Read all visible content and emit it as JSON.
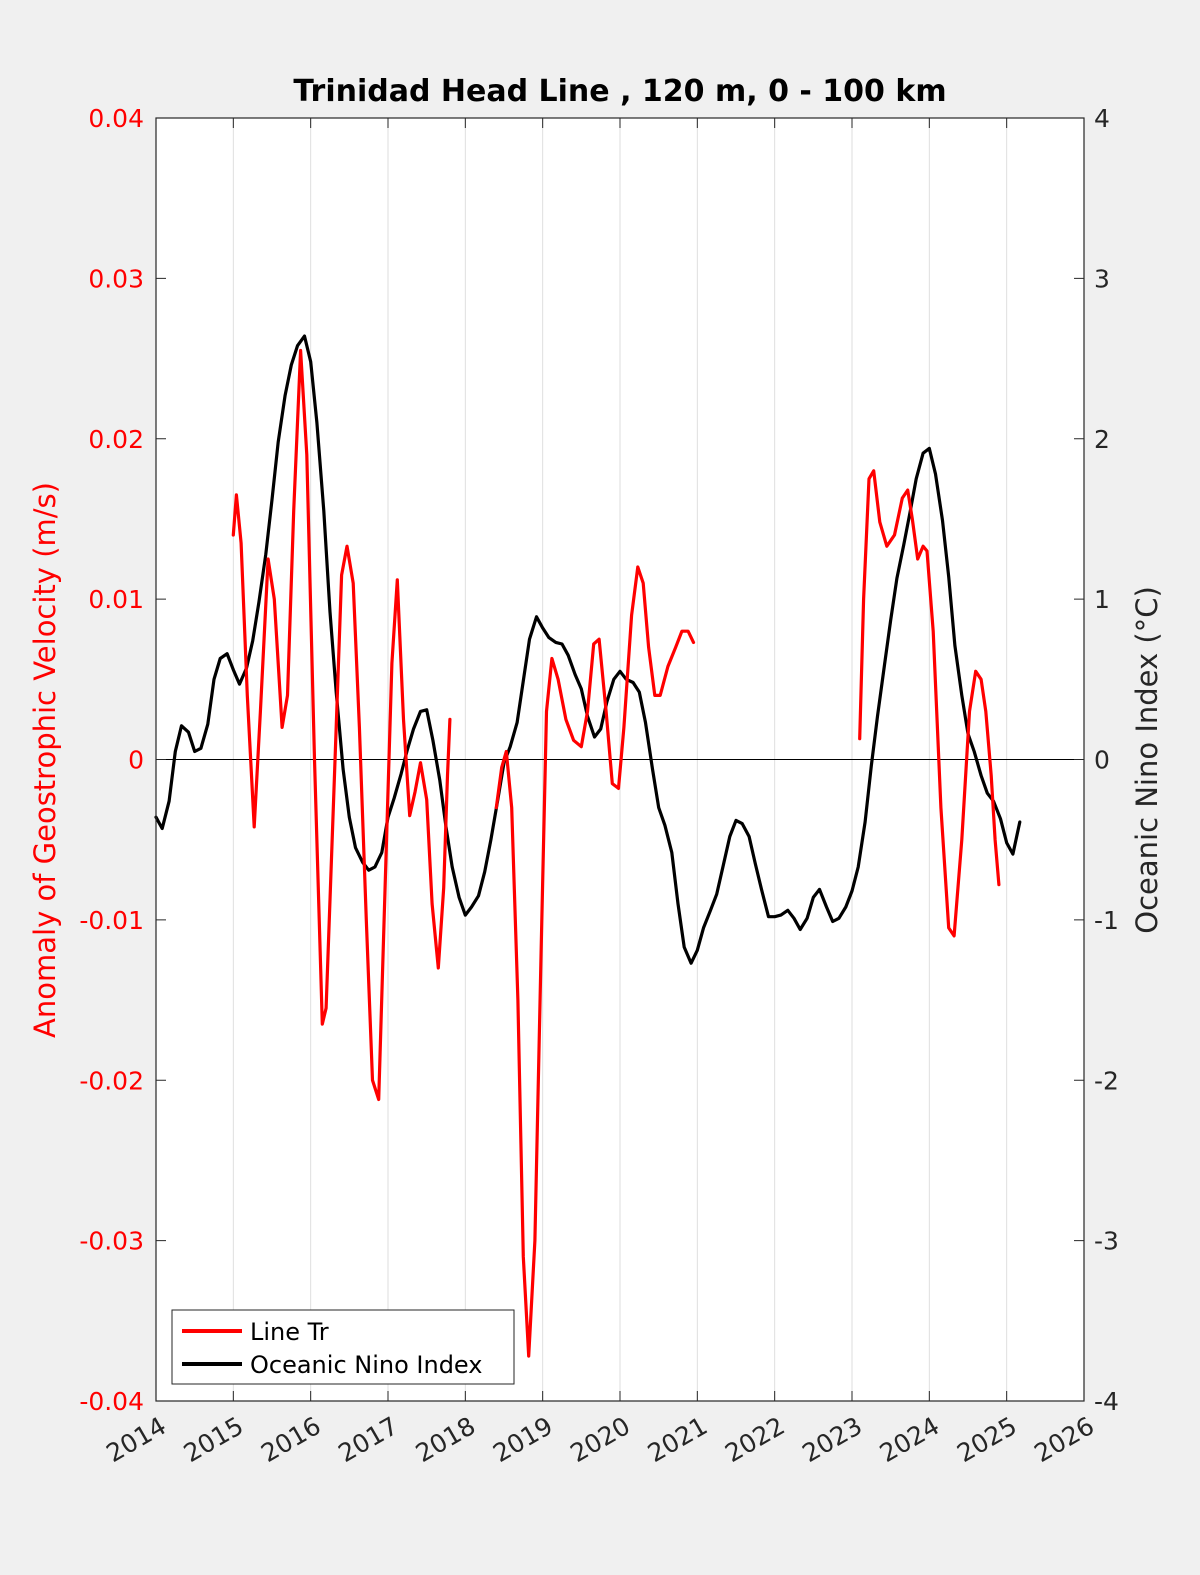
{
  "chart_data": {
    "type": "line",
    "title": "Trinidad Head Line , 120 m, 0 - 100 km",
    "xlabel": "",
    "ylabel_left": "Anomaly of Geostrophic Velocity (m/s)",
    "ylabel_right": "Oceanic Nino Index (°C)",
    "xlim": [
      2014,
      2026
    ],
    "ylim_left": [
      -0.04,
      0.04
    ],
    "ylim_right": [
      -4,
      4
    ],
    "x_ticks": [
      "2014",
      "2015",
      "2016",
      "2017",
      "2018",
      "2019",
      "2020",
      "2021",
      "2022",
      "2023",
      "2024",
      "2025",
      "2026"
    ],
    "y_ticks_left": [
      "-0.04",
      "-0.03",
      "-0.02",
      "-0.01",
      "0",
      "0.01",
      "0.02",
      "0.03",
      "0.04"
    ],
    "y_ticks_right": [
      "-4",
      "-3",
      "-2",
      "-1",
      "0",
      "1",
      "2",
      "3",
      "4"
    ],
    "grid": "vertical lines at x ticks",
    "legend_position": "bottom-left",
    "colors": {
      "line_tr": "#ff0000",
      "oni": "#000000",
      "left_axis": "#ff0000",
      "background": "#f0f0f0"
    },
    "series": [
      {
        "name": "Line Tr",
        "axis": "left",
        "color": "#ff0000",
        "segments": [
          [
            [
              2015.0,
              0.014
            ],
            [
              2015.04,
              0.0165
            ],
            [
              2015.1,
              0.0135
            ],
            [
              2015.18,
              0.004
            ],
            [
              2015.27,
              -0.0042
            ],
            [
              2015.35,
              0.003
            ],
            [
              2015.45,
              0.0125
            ],
            [
              2015.53,
              0.01
            ],
            [
              2015.63,
              0.002
            ],
            [
              2015.7,
              0.004
            ],
            [
              2015.78,
              0.0155
            ],
            [
              2015.87,
              0.0255
            ],
            [
              2015.95,
              0.019
            ],
            [
              2016.05,
              0.0
            ],
            [
              2016.15,
              -0.0165
            ],
            [
              2016.2,
              -0.0155
            ],
            [
              2016.3,
              -0.002
            ],
            [
              2016.4,
              0.0115
            ],
            [
              2016.47,
              0.0133
            ],
            [
              2016.55,
              0.011
            ],
            [
              2016.63,
              0.002
            ],
            [
              2016.72,
              -0.01
            ],
            [
              2016.8,
              -0.02
            ],
            [
              2016.88,
              -0.0212
            ],
            [
              2016.95,
              -0.01
            ],
            [
              2017.05,
              0.006
            ],
            [
              2017.12,
              0.0112
            ],
            [
              2017.2,
              0.0025
            ],
            [
              2017.28,
              -0.0035
            ],
            [
              2017.35,
              -0.002
            ],
            [
              2017.42,
              -0.0002
            ],
            [
              2017.5,
              -0.0025
            ],
            [
              2017.57,
              -0.009
            ],
            [
              2017.65,
              -0.013
            ],
            [
              2017.72,
              -0.008
            ],
            [
              2017.77,
              -0.001
            ],
            [
              2017.8,
              0.0025
            ]
          ],
          [
            [
              2018.4,
              -0.003
            ],
            [
              2018.47,
              -0.0005
            ],
            [
              2018.53,
              0.0005
            ],
            [
              2018.6,
              -0.003
            ],
            [
              2018.68,
              -0.015
            ],
            [
              2018.75,
              -0.031
            ],
            [
              2018.82,
              -0.0372
            ],
            [
              2018.9,
              -0.03
            ],
            [
              2018.98,
              -0.012
            ],
            [
              2019.05,
              0.003
            ],
            [
              2019.12,
              0.0063
            ],
            [
              2019.2,
              0.005
            ],
            [
              2019.3,
              0.0025
            ],
            [
              2019.4,
              0.0012
            ],
            [
              2019.5,
              0.0008
            ],
            [
              2019.58,
              0.003
            ],
            [
              2019.66,
              0.0072
            ],
            [
              2019.73,
              0.0075
            ],
            [
              2019.82,
              0.003
            ],
            [
              2019.9,
              -0.0015
            ],
            [
              2019.98,
              -0.0018
            ],
            [
              2020.05,
              0.002
            ],
            [
              2020.15,
              0.009
            ],
            [
              2020.23,
              0.012
            ],
            [
              2020.3,
              0.011
            ],
            [
              2020.37,
              0.007
            ],
            [
              2020.45,
              0.004
            ],
            [
              2020.52,
              0.004
            ],
            [
              2020.62,
              0.0058
            ],
            [
              2020.72,
              0.007
            ],
            [
              2020.8,
              0.008
            ],
            [
              2020.88,
              0.008
            ],
            [
              2020.95,
              0.0073
            ]
          ],
          [
            [
              2023.1,
              0.0013
            ],
            [
              2023.15,
              0.01
            ],
            [
              2023.22,
              0.0175
            ],
            [
              2023.28,
              0.018
            ],
            [
              2023.36,
              0.0148
            ],
            [
              2023.45,
              0.0133
            ],
            [
              2023.55,
              0.014
            ],
            [
              2023.65,
              0.0163
            ],
            [
              2023.72,
              0.0168
            ],
            [
              2023.78,
              0.015
            ],
            [
              2023.85,
              0.0125
            ],
            [
              2023.92,
              0.0133
            ],
            [
              2023.97,
              0.013
            ],
            [
              2024.05,
              0.008
            ],
            [
              2024.15,
              -0.003
            ],
            [
              2024.25,
              -0.0105
            ],
            [
              2024.32,
              -0.011
            ],
            [
              2024.42,
              -0.005
            ],
            [
              2024.52,
              0.003
            ],
            [
              2024.6,
              0.0055
            ],
            [
              2024.67,
              0.005
            ],
            [
              2024.73,
              0.003
            ],
            [
              2024.8,
              -0.001
            ],
            [
              2024.85,
              -0.005
            ],
            [
              2024.9,
              -0.0078
            ]
          ]
        ]
      },
      {
        "name": "Oceanic Nino Index",
        "axis": "right",
        "color": "#000000",
        "segments": [
          [
            [
              2014.0,
              -0.36
            ],
            [
              2014.08,
              -0.43
            ],
            [
              2014.17,
              -0.26
            ],
            [
              2014.25,
              0.05
            ],
            [
              2014.33,
              0.21
            ],
            [
              2014.42,
              0.17
            ],
            [
              2014.5,
              0.05
            ],
            [
              2014.58,
              0.07
            ],
            [
              2014.67,
              0.22
            ],
            [
              2014.75,
              0.5
            ],
            [
              2014.83,
              0.63
            ],
            [
              2014.92,
              0.66
            ],
            [
              2015.0,
              0.56
            ],
            [
              2015.08,
              0.47
            ],
            [
              2015.17,
              0.57
            ],
            [
              2015.25,
              0.74
            ],
            [
              2015.33,
              0.98
            ],
            [
              2015.42,
              1.28
            ],
            [
              2015.5,
              1.62
            ],
            [
              2015.58,
              1.98
            ],
            [
              2015.67,
              2.27
            ],
            [
              2015.75,
              2.46
            ],
            [
              2015.83,
              2.58
            ],
            [
              2015.92,
              2.64
            ],
            [
              2016.0,
              2.48
            ],
            [
              2016.08,
              2.1
            ],
            [
              2016.17,
              1.55
            ],
            [
              2016.25,
              0.92
            ],
            [
              2016.33,
              0.42
            ],
            [
              2016.42,
              -0.06
            ],
            [
              2016.5,
              -0.36
            ],
            [
              2016.58,
              -0.55
            ],
            [
              2016.67,
              -0.64
            ],
            [
              2016.75,
              -0.69
            ],
            [
              2016.83,
              -0.67
            ],
            [
              2016.92,
              -0.58
            ],
            [
              2017.0,
              -0.36
            ],
            [
              2017.08,
              -0.24
            ],
            [
              2017.17,
              -0.09
            ],
            [
              2017.25,
              0.06
            ],
            [
              2017.33,
              0.19
            ],
            [
              2017.42,
              0.3
            ],
            [
              2017.5,
              0.31
            ],
            [
              2017.58,
              0.12
            ],
            [
              2017.67,
              -0.13
            ],
            [
              2017.75,
              -0.42
            ],
            [
              2017.83,
              -0.67
            ],
            [
              2017.92,
              -0.86
            ],
            [
              2018.0,
              -0.97
            ],
            [
              2018.08,
              -0.92
            ],
            [
              2018.17,
              -0.85
            ],
            [
              2018.25,
              -0.7
            ],
            [
              2018.33,
              -0.5
            ],
            [
              2018.42,
              -0.25
            ],
            [
              2018.5,
              -0.02
            ],
            [
              2018.58,
              0.08
            ],
            [
              2018.67,
              0.23
            ],
            [
              2018.75,
              0.49
            ],
            [
              2018.83,
              0.75
            ],
            [
              2018.92,
              0.89
            ],
            [
              2019.0,
              0.82
            ],
            [
              2019.08,
              0.76
            ],
            [
              2019.17,
              0.73
            ],
            [
              2019.25,
              0.72
            ],
            [
              2019.33,
              0.65
            ],
            [
              2019.42,
              0.53
            ],
            [
              2019.5,
              0.44
            ],
            [
              2019.58,
              0.27
            ],
            [
              2019.67,
              0.14
            ],
            [
              2019.75,
              0.19
            ],
            [
              2019.83,
              0.36
            ],
            [
              2019.92,
              0.5
            ],
            [
              2020.0,
              0.55
            ],
            [
              2020.08,
              0.5
            ],
            [
              2020.17,
              0.48
            ],
            [
              2020.25,
              0.42
            ],
            [
              2020.33,
              0.23
            ],
            [
              2020.42,
              -0.06
            ],
            [
              2020.5,
              -0.3
            ],
            [
              2020.58,
              -0.41
            ],
            [
              2020.67,
              -0.58
            ],
            [
              2020.75,
              -0.9
            ],
            [
              2020.83,
              -1.17
            ],
            [
              2020.92,
              -1.27
            ],
            [
              2021.0,
              -1.19
            ],
            [
              2021.08,
              -1.05
            ],
            [
              2021.17,
              -0.94
            ],
            [
              2021.25,
              -0.84
            ],
            [
              2021.33,
              -0.67
            ],
            [
              2021.42,
              -0.48
            ],
            [
              2021.5,
              -0.38
            ],
            [
              2021.58,
              -0.4
            ],
            [
              2021.67,
              -0.48
            ],
            [
              2021.75,
              -0.65
            ],
            [
              2021.83,
              -0.81
            ],
            [
              2021.92,
              -0.98
            ],
            [
              2022.0,
              -0.98
            ],
            [
              2022.08,
              -0.97
            ],
            [
              2022.17,
              -0.94
            ],
            [
              2022.25,
              -0.99
            ],
            [
              2022.33,
              -1.06
            ],
            [
              2022.42,
              -0.99
            ],
            [
              2022.5,
              -0.86
            ],
            [
              2022.58,
              -0.81
            ],
            [
              2022.67,
              -0.92
            ],
            [
              2022.75,
              -1.01
            ],
            [
              2022.83,
              -0.99
            ],
            [
              2022.92,
              -0.92
            ],
            [
              2023.0,
              -0.82
            ],
            [
              2023.08,
              -0.67
            ],
            [
              2023.17,
              -0.39
            ],
            [
              2023.25,
              -0.04
            ],
            [
              2023.33,
              0.27
            ],
            [
              2023.42,
              0.59
            ],
            [
              2023.5,
              0.87
            ],
            [
              2023.58,
              1.13
            ],
            [
              2023.67,
              1.34
            ],
            [
              2023.75,
              1.54
            ],
            [
              2023.83,
              1.75
            ],
            [
              2023.92,
              1.91
            ],
            [
              2024.0,
              1.94
            ],
            [
              2024.08,
              1.78
            ],
            [
              2024.17,
              1.49
            ],
            [
              2024.25,
              1.14
            ],
            [
              2024.33,
              0.71
            ],
            [
              2024.42,
              0.4
            ],
            [
              2024.5,
              0.16
            ],
            [
              2024.58,
              0.05
            ],
            [
              2024.67,
              -0.1
            ],
            [
              2024.75,
              -0.21
            ],
            [
              2024.83,
              -0.26
            ],
            [
              2024.92,
              -0.37
            ],
            [
              2025.0,
              -0.52
            ],
            [
              2025.08,
              -0.59
            ],
            [
              2025.17,
              -0.39
            ]
          ]
        ]
      }
    ]
  }
}
